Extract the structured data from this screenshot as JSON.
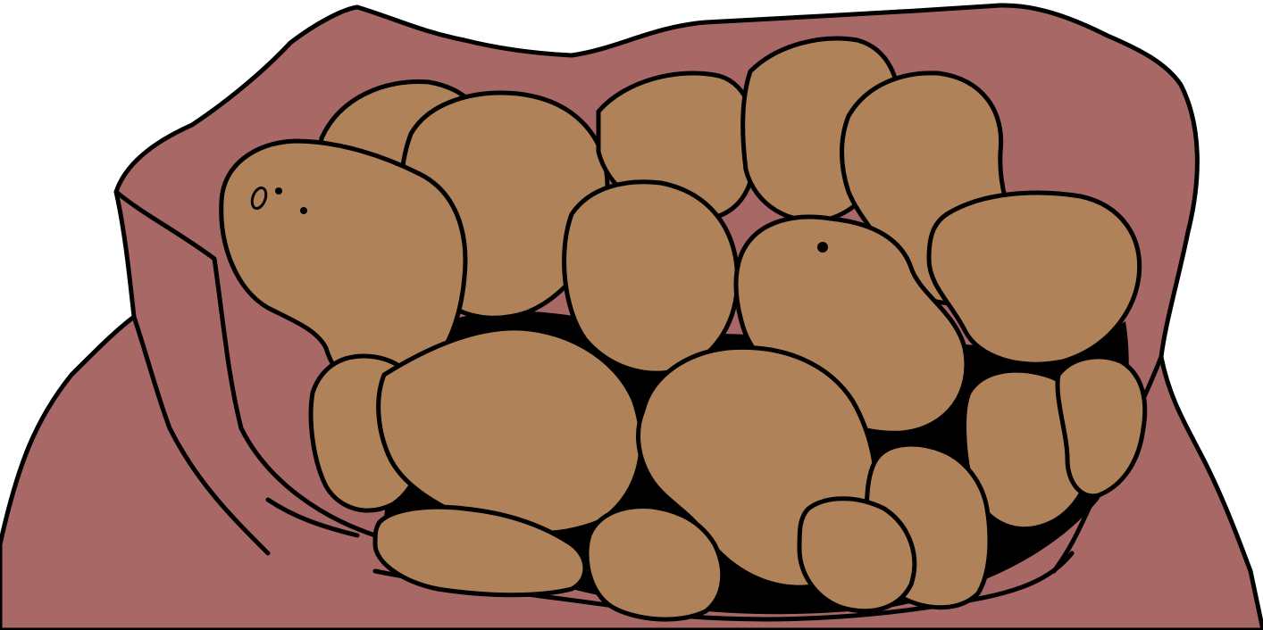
{
  "scene": {
    "subject": "potato-sack",
    "colors": {
      "background": "#ffffff",
      "sack": "#a86866",
      "potato": "#b0825a",
      "outline": "#000000"
    }
  }
}
